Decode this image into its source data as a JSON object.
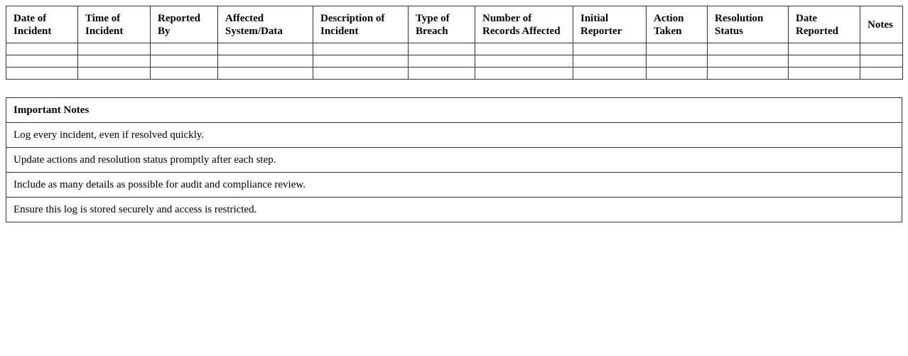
{
  "log_table": {
    "columns": [
      "Date of Incident",
      "Time of Incident",
      "Reported By",
      "Affected System/Data",
      "Description of Incident",
      "Type of Breach",
      "Number of Records Affected",
      "Initial Reporter",
      "Action Taken",
      "Resolution Status",
      "Date Reported",
      "Notes"
    ],
    "rows": [
      [
        "",
        "",
        "",
        "",
        "",
        "",
        "",
        "",
        "",
        "",
        "",
        ""
      ],
      [
        "",
        "",
        "",
        "",
        "",
        "",
        "",
        "",
        "",
        "",
        "",
        ""
      ],
      [
        "",
        "",
        "",
        "",
        "",
        "",
        "",
        "",
        "",
        "",
        "",
        ""
      ]
    ]
  },
  "notes": {
    "title": "Important Notes",
    "items": [
      "Log every incident, even if resolved quickly.",
      "Update actions and resolution status promptly after each step.",
      "Include as many details as possible for audit and compliance review.",
      "Ensure this log is stored securely and access is restricted."
    ]
  }
}
